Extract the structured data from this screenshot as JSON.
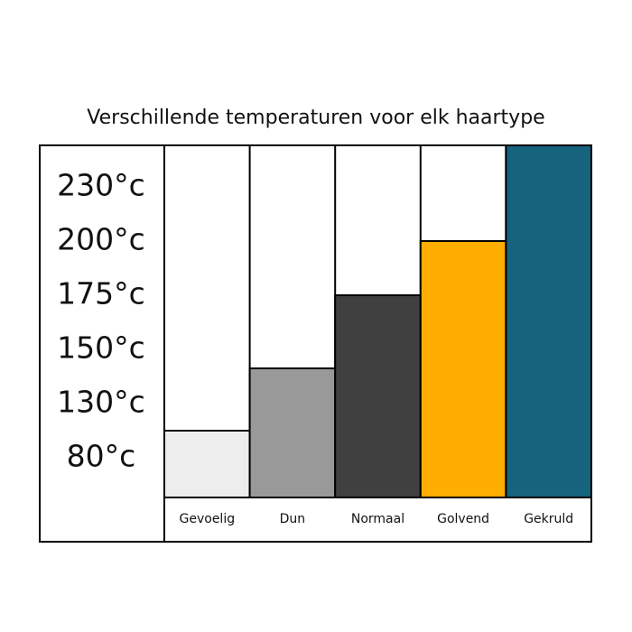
{
  "chart_data": {
    "type": "bar",
    "title": "Verschillende temperaturen voor elk haartype",
    "categories": [
      "Gevoelig",
      "Dun",
      "Normaal",
      "Golvend",
      "Gekruld"
    ],
    "values": [
      105,
      143,
      175,
      200,
      253
    ],
    "colors": [
      "#ededed",
      "#999999",
      "#404040",
      "#ffad00",
      "#16637e"
    ],
    "ylim": [
      44,
      253
    ],
    "yticks": [
      {
        "value": 80,
        "label": "80°c"
      },
      {
        "value": 130,
        "label": "130°c"
      },
      {
        "value": 150,
        "label": "150°c"
      },
      {
        "value": 175,
        "label": "175°c"
      },
      {
        "value": 200,
        "label": "200°c"
      },
      {
        "value": 230,
        "label": "230°c"
      }
    ]
  }
}
